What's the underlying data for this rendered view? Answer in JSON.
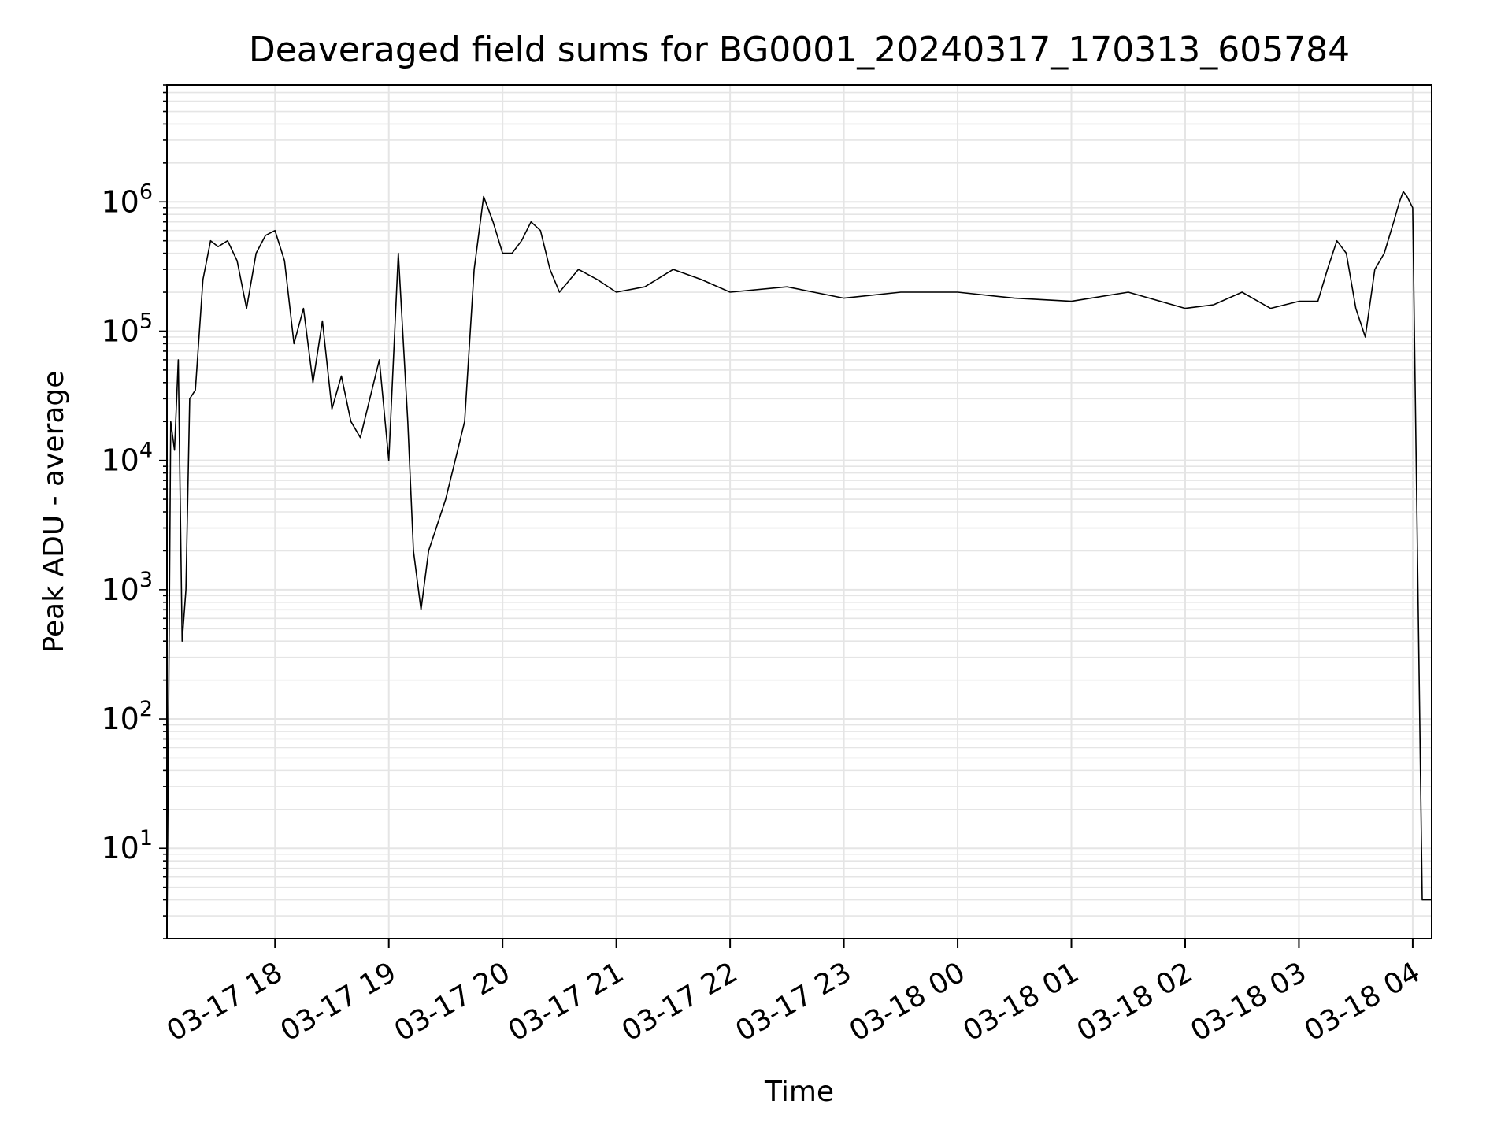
{
  "chart_data": {
    "type": "line",
    "title": "Deaveraged field sums for BG0001_20240317_170313_605784",
    "xlabel": "Time",
    "ylabel": "Peak ADU - average",
    "yscale": "log",
    "grid": true,
    "ylim": [
      2,
      8000000
    ],
    "xlim": [
      "2024-03-17 17:03",
      "2024-03-18 04:10"
    ],
    "x_ticks": [
      "03-17 18",
      "03-17 19",
      "03-17 20",
      "03-17 21",
      "03-17 22",
      "03-17 23",
      "03-18 00",
      "03-18 01",
      "03-18 02",
      "03-18 03",
      "03-18 04"
    ],
    "y_ticks": [
      {
        "base": "10",
        "exp": "1"
      },
      {
        "base": "10",
        "exp": "2"
      },
      {
        "base": "10",
        "exp": "3"
      },
      {
        "base": "10",
        "exp": "4"
      },
      {
        "base": "10",
        "exp": "5"
      },
      {
        "base": "10",
        "exp": "6"
      }
    ],
    "line_color": "#000000",
    "grid_color": "#e5e5e5",
    "series": [
      {
        "x": [
          "2024-03-17 17:03",
          "2024-03-17 17:05",
          "2024-03-17 17:07",
          "2024-03-17 17:09",
          "2024-03-17 17:11",
          "2024-03-17 17:13",
          "2024-03-17 17:15",
          "2024-03-17 17:18",
          "2024-03-17 17:22",
          "2024-03-17 17:26",
          "2024-03-17 17:30",
          "2024-03-17 17:35",
          "2024-03-17 17:40",
          "2024-03-17 17:45",
          "2024-03-17 17:50",
          "2024-03-17 17:55",
          "2024-03-17 18:00",
          "2024-03-17 18:05",
          "2024-03-17 18:10",
          "2024-03-17 18:15",
          "2024-03-17 18:20",
          "2024-03-17 18:25",
          "2024-03-17 18:30",
          "2024-03-17 18:35",
          "2024-03-17 18:40",
          "2024-03-17 18:45",
          "2024-03-17 18:50",
          "2024-03-17 18:55",
          "2024-03-17 19:00",
          "2024-03-17 19:05",
          "2024-03-17 19:10",
          "2024-03-17 19:13",
          "2024-03-17 19:17",
          "2024-03-17 19:21",
          "2024-03-17 19:25",
          "2024-03-17 19:30",
          "2024-03-17 19:35",
          "2024-03-17 19:40",
          "2024-03-17 19:45",
          "2024-03-17 19:50",
          "2024-03-17 19:55",
          "2024-03-17 20:00",
          "2024-03-17 20:05",
          "2024-03-17 20:10",
          "2024-03-17 20:15",
          "2024-03-17 20:20",
          "2024-03-17 20:25",
          "2024-03-17 20:30",
          "2024-03-17 20:40",
          "2024-03-17 20:50",
          "2024-03-17 21:00",
          "2024-03-17 21:15",
          "2024-03-17 21:30",
          "2024-03-17 21:45",
          "2024-03-17 22:00",
          "2024-03-17 22:30",
          "2024-03-17 23:00",
          "2024-03-17 23:30",
          "2024-03-18 00:00",
          "2024-03-18 00:30",
          "2024-03-18 01:00",
          "2024-03-18 01:30",
          "2024-03-18 02:00",
          "2024-03-18 02:15",
          "2024-03-18 02:30",
          "2024-03-18 02:45",
          "2024-03-18 03:00",
          "2024-03-18 03:10",
          "2024-03-18 03:15",
          "2024-03-18 03:20",
          "2024-03-18 03:25",
          "2024-03-18 03:30",
          "2024-03-18 03:35",
          "2024-03-18 03:40",
          "2024-03-18 03:45",
          "2024-03-18 03:50",
          "2024-03-18 03:53",
          "2024-03-18 03:55",
          "2024-03-18 03:57",
          "2024-03-18 04:00",
          "2024-03-18 04:05",
          "2024-03-18 04:10"
        ],
        "y": [
          2,
          20000,
          12000,
          60000,
          400,
          1000,
          30000,
          35000,
          250000,
          500000,
          450000,
          500000,
          350000,
          150000,
          400000,
          550000,
          600000,
          350000,
          80000,
          150000,
          40000,
          120000,
          25000,
          45000,
          20000,
          15000,
          30000,
          60000,
          10000,
          400000,
          20000,
          2000,
          700,
          2000,
          3000,
          5000,
          10000,
          20000,
          300000,
          1100000,
          700000,
          400000,
          400000,
          500000,
          700000,
          600000,
          300000,
          200000,
          300000,
          250000,
          200000,
          220000,
          300000,
          250000,
          200000,
          220000,
          180000,
          200000,
          200000,
          180000,
          170000,
          200000,
          150000,
          160000,
          200000,
          150000,
          170000,
          170000,
          300000,
          500000,
          400000,
          150000,
          90000,
          300000,
          400000,
          700000,
          1000000,
          1200000,
          1100000,
          900000,
          4,
          4
        ]
      }
    ]
  }
}
